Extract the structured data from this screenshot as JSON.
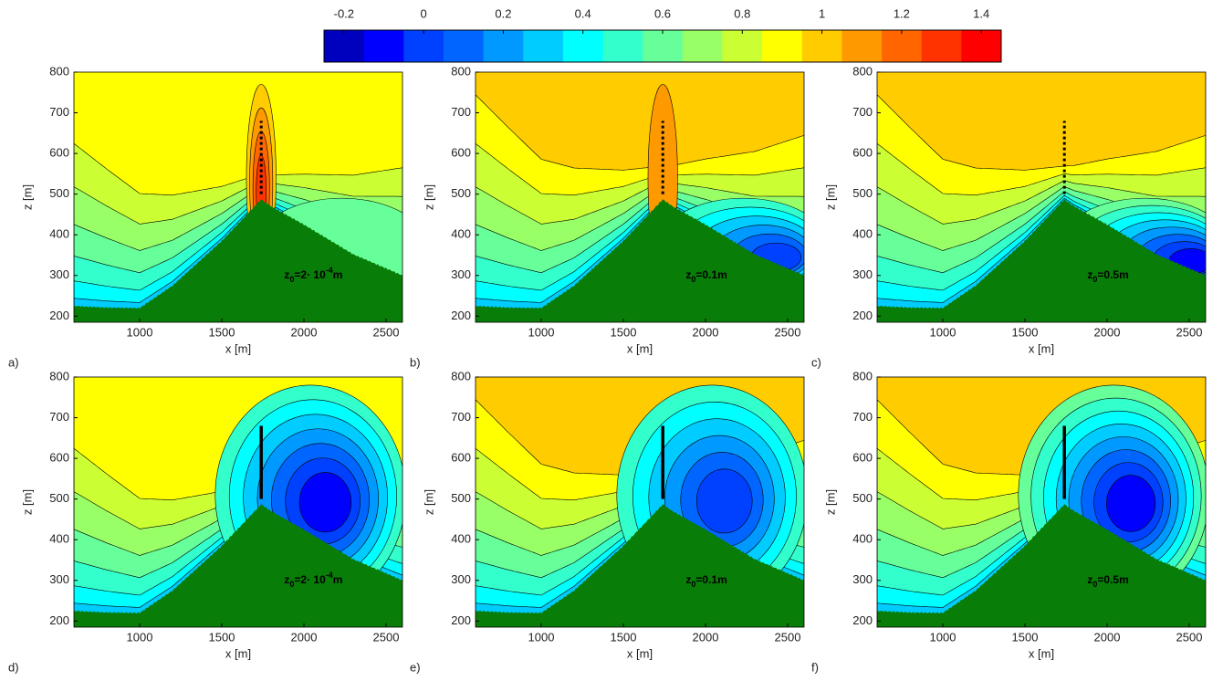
{
  "colorbar": {
    "clim": [
      -0.25,
      1.45
    ],
    "ticks": [
      -0.2,
      0,
      0.2,
      0.4,
      0.6,
      0.8,
      1,
      1.2,
      1.4
    ],
    "colors": [
      "#0000bf",
      "#0000ff",
      "#0040ff",
      "#0066ff",
      "#0099ff",
      "#00ccff",
      "#00ffff",
      "#33ffcc",
      "#66ff99",
      "#99ff66",
      "#ccff33",
      "#ffff00",
      "#ffcc00",
      "#ff9900",
      "#ff6600",
      "#ff3300",
      "#ff0000"
    ]
  },
  "chart_data": [
    {
      "type": "contour",
      "panel_label": "a)",
      "xlabel": "x [m]",
      "ylabel": "z [m]",
      "xlim": [
        600,
        2600
      ],
      "ylim": [
        185,
        800
      ],
      "xticks": [
        1000,
        1500,
        2000,
        2500
      ],
      "yticks": [
        200,
        300,
        400,
        500,
        600,
        700,
        800
      ],
      "annotation": [
        "z",
        "0",
        "=2· 10",
        "-4",
        "m"
      ],
      "upwind_levels": [
        0.3,
        0.4,
        0.5,
        0.6,
        0.7,
        0.8
      ],
      "top_level": 0.9,
      "plume_levels": [
        1.0,
        1.1,
        1.2,
        1.3
      ],
      "wake_levels": [
        0.6
      ]
    },
    {
      "type": "contour",
      "panel_label": "b)",
      "xlabel": "x [m]",
      "ylabel": "z [m]",
      "xlim": [
        600,
        2600
      ],
      "ylim": [
        185,
        800
      ],
      "xticks": [
        1000,
        1500,
        2000,
        2500
      ],
      "yticks": [
        200,
        300,
        400,
        500,
        600,
        700,
        800
      ],
      "annotation": [
        "z",
        "0",
        "=0.1m"
      ],
      "upwind_levels": [
        0.3,
        0.4,
        0.5,
        0.6,
        0.7,
        0.8,
        0.9
      ],
      "top_level": 1.0,
      "plume_levels": [
        1.1
      ],
      "wake_levels": [
        0.5,
        0.4,
        0.3,
        0.2,
        0.1,
        0.0
      ]
    },
    {
      "type": "contour",
      "panel_label": "c)",
      "xlabel": "x [m]",
      "ylabel": "z [m]",
      "xlim": [
        600,
        2600
      ],
      "ylim": [
        185,
        800
      ],
      "xticks": [
        1000,
        1500,
        2000,
        2500
      ],
      "yticks": [
        200,
        300,
        400,
        500,
        600,
        700,
        800
      ],
      "annotation": [
        "z",
        "0",
        "=0.5m"
      ],
      "upwind_levels": [
        0.3,
        0.4,
        0.5,
        0.6,
        0.7,
        0.8,
        0.9
      ],
      "top_level": 1.0,
      "plume_levels": [],
      "wake_levels": [
        0.6,
        0.5,
        0.4,
        0.3,
        0.2,
        0.1,
        0.0,
        -0.1
      ]
    },
    {
      "type": "contour",
      "panel_label": "d)",
      "xlabel": "x [m]",
      "ylabel": "z [m]",
      "xlim": [
        600,
        2600
      ],
      "ylim": [
        185,
        800
      ],
      "xticks": [
        1000,
        1500,
        2000,
        2500
      ],
      "yticks": [
        200,
        300,
        400,
        500,
        600,
        700,
        800
      ],
      "annotation": [
        "z",
        "0",
        "=2· 10",
        "-4",
        "m"
      ],
      "upwind_levels": [
        0.3,
        0.4,
        0.5,
        0.6,
        0.7,
        0.8
      ],
      "top_level": 0.9,
      "plume_levels": [],
      "wake_levels": [
        0.5,
        0.4,
        0.3,
        0.2,
        0.1,
        0.0,
        -0.1
      ]
    },
    {
      "type": "contour",
      "panel_label": "e)",
      "xlabel": "x [m]",
      "ylabel": "z [m]",
      "xlim": [
        600,
        2600
      ],
      "ylim": [
        185,
        800
      ],
      "xticks": [
        1000,
        1500,
        2000,
        2500
      ],
      "yticks": [
        200,
        300,
        400,
        500,
        600,
        700,
        800
      ],
      "annotation": [
        "z",
        "0",
        "=0.1m"
      ],
      "upwind_levels": [
        0.3,
        0.4,
        0.5,
        0.6,
        0.7,
        0.8,
        0.9
      ],
      "top_level": 1.0,
      "plume_levels": [],
      "wake_levels": [
        0.5,
        0.4,
        0.3,
        0.2,
        0.1,
        0.0
      ]
    },
    {
      "type": "contour",
      "panel_label": "f)",
      "xlabel": "x [m]",
      "ylabel": "z [m]",
      "xlim": [
        600,
        2600
      ],
      "ylim": [
        185,
        800
      ],
      "xticks": [
        1000,
        1500,
        2000,
        2500
      ],
      "yticks": [
        200,
        300,
        400,
        500,
        600,
        700,
        800
      ],
      "annotation": [
        "z",
        "0",
        "=0.5m"
      ],
      "upwind_levels": [
        0.3,
        0.4,
        0.5,
        0.6,
        0.7,
        0.8,
        0.9
      ],
      "top_level": 1.0,
      "plume_levels": [],
      "wake_levels": [
        0.6,
        0.5,
        0.4,
        0.3,
        0.2,
        0.1,
        0.0,
        -0.1
      ]
    }
  ]
}
